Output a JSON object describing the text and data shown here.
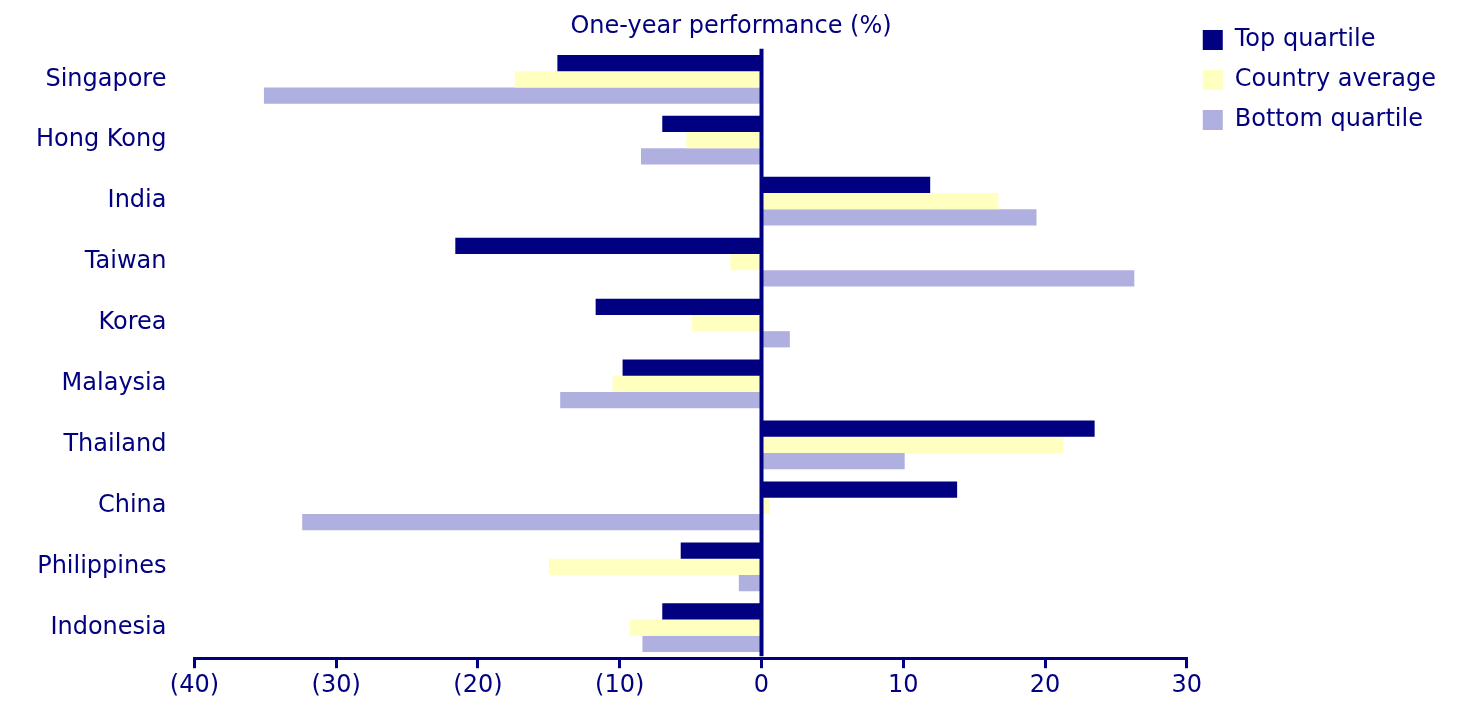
{
  "chart_data": {
    "type": "bar",
    "orientation": "horizontal",
    "title": "One-year performance (%)",
    "categories": [
      "Singapore",
      "Hong Kong",
      "India",
      "Taiwan",
      "Korea",
      "Malaysia",
      "Thailand",
      "China",
      "Philippines",
      "Indonesia"
    ],
    "series": [
      {
        "name": "Top quartile",
        "color": "#000080",
        "values": [
          -14.4,
          -7.0,
          11.9,
          -21.6,
          -11.7,
          -9.8,
          23.5,
          13.8,
          -5.7,
          -7.0
        ]
      },
      {
        "name": "Country average",
        "color": "#ffffc0",
        "values": [
          -17.4,
          -5.3,
          16.7,
          -2.2,
          -4.9,
          -10.5,
          21.3,
          0.6,
          -15.0,
          -9.3
        ]
      },
      {
        "name": "Bottom quartile",
        "color": "#b0b0e0",
        "values": [
          -35.1,
          -8.5,
          19.4,
          26.3,
          2.0,
          -14.2,
          10.1,
          -32.4,
          -1.6,
          -8.4
        ]
      }
    ],
    "xlim": [
      -40,
      30
    ],
    "xticks": [
      {
        "value": -40,
        "label": "(40)"
      },
      {
        "value": -30,
        "label": "(30)"
      },
      {
        "value": -20,
        "label": "(20)"
      },
      {
        "value": -10,
        "label": "(10)"
      },
      0,
      10,
      20,
      30
    ],
    "ref_lines": [
      {
        "axis": "x",
        "value": 0,
        "color": "#000080"
      }
    ],
    "legend": "top right",
    "grid": false
  }
}
